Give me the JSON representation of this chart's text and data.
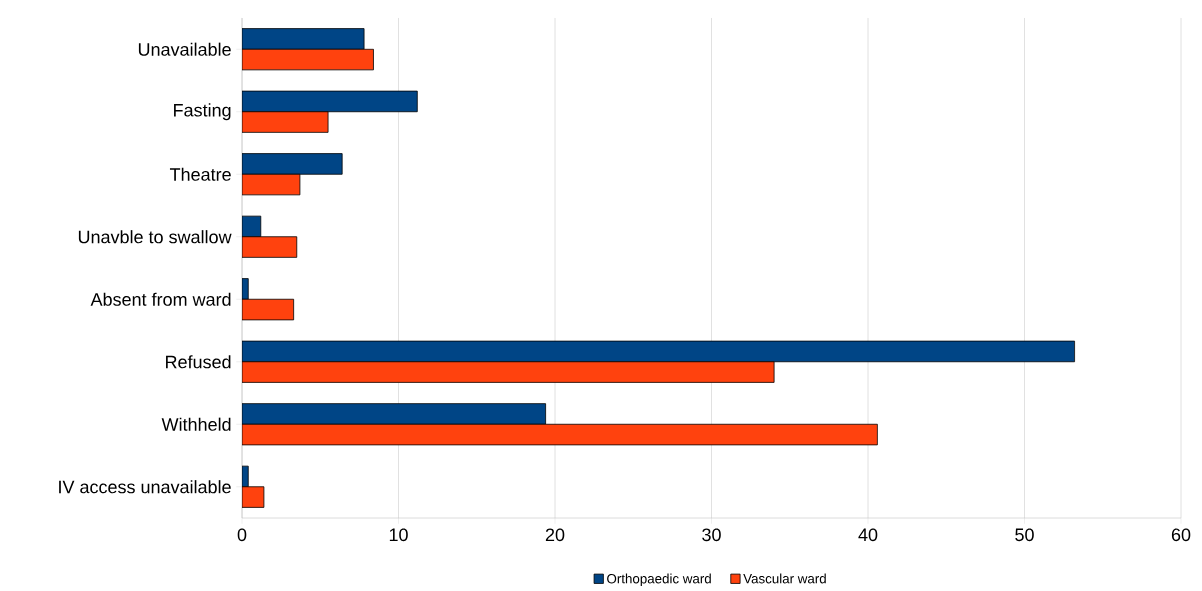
{
  "chart_data": {
    "type": "bar",
    "orientation": "horizontal",
    "categories": [
      "Unavailable",
      "Fasting",
      "Theatre",
      "Unavble to swallow",
      "Absent from ward",
      "Refused",
      "Withheld",
      "IV access unavailable"
    ],
    "series": [
      {
        "name": "Orthopaedic ward",
        "color": "#004586",
        "values": [
          7.8,
          11.2,
          6.4,
          1.2,
          0.4,
          53.2,
          19.4,
          0.4
        ]
      },
      {
        "name": "Vascular ward",
        "color": "#ff420e",
        "values": [
          8.4,
          5.5,
          3.7,
          3.5,
          3.3,
          34.0,
          40.6,
          1.4
        ]
      }
    ],
    "xlim": [
      0,
      60
    ],
    "xticks": [
      0,
      10,
      20,
      30,
      40,
      50,
      60
    ],
    "grid": "x",
    "legend": "bottom"
  }
}
